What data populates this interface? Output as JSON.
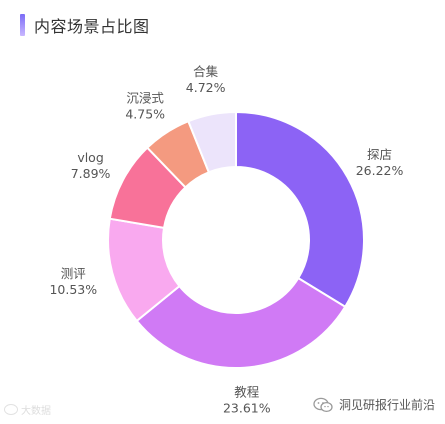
{
  "header": {
    "title": "内容场景占比图"
  },
  "colors": {
    "accent_top": "#7b6cf6",
    "accent_bottom": "#c9b8ff"
  },
  "chart_data": {
    "type": "pie",
    "subtype": "donut",
    "title": "内容场景占比图",
    "slices": [
      {
        "label": "探店",
        "value": 26.22,
        "display": "26.22%",
        "color": "#8c63f5"
      },
      {
        "label": "教程",
        "value": 23.61,
        "display": "23.61%",
        "color": "#d07af5"
      },
      {
        "label": "测评",
        "value": 10.53,
        "display": "10.53%",
        "color": "#f9a9ef"
      },
      {
        "label": "vlog",
        "value": 7.89,
        "display": "7.89%",
        "color": "#f87299"
      },
      {
        "label": "沉浸式",
        "value": 4.75,
        "display": "4.75%",
        "color": "#f49a80"
      },
      {
        "label": "合集",
        "value": 4.72,
        "display": "4.72%",
        "color": "#ece4fb"
      }
    ],
    "start_angle": "top",
    "direction": "clockwise",
    "legend": "none"
  },
  "watermark": {
    "left_text": "大数据",
    "right_text": "洞见研报行业前沿",
    "icon": "wechat-icon"
  }
}
